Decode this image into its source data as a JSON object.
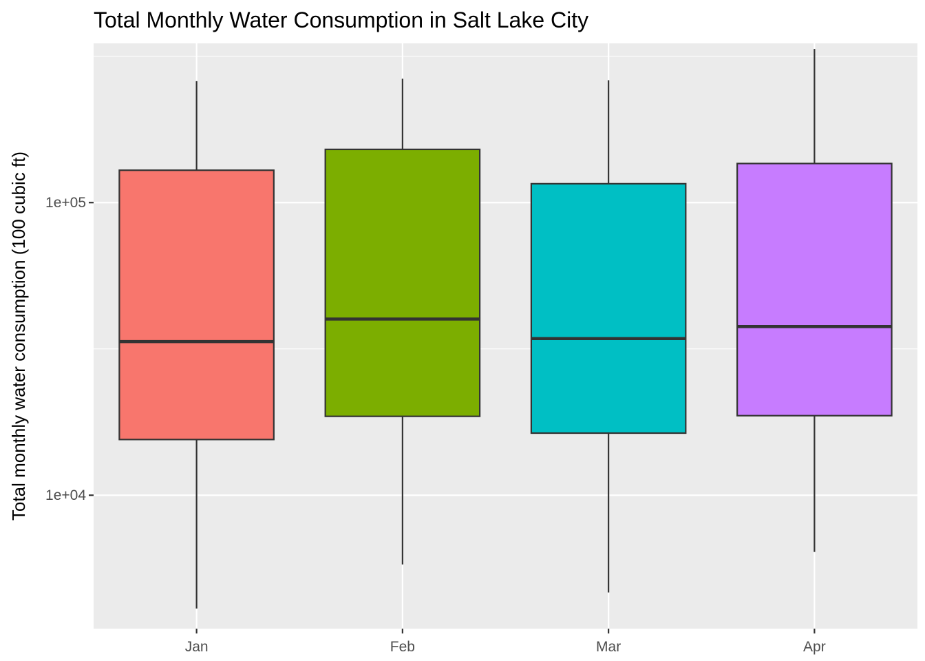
{
  "chart_data": {
    "type": "boxplot",
    "title": "Total Monthly Water Consumption in Salt Lake City",
    "xlabel": "",
    "ylabel": "Total monthly water consumption (100 cubic ft)",
    "y_scale": "log10",
    "ylim": [
      3500,
      350000
    ],
    "y_ticks": [
      10000,
      100000
    ],
    "y_tick_labels": [
      "1e+04",
      "1e+05"
    ],
    "categories": [
      "Jan",
      "Feb",
      "Mar",
      "Apr"
    ],
    "boxes": [
      {
        "category": "Jan",
        "min": 4100,
        "q1": 15500,
        "median": 33500,
        "q3": 129000,
        "max": 260000
      },
      {
        "category": "Feb",
        "min": 5800,
        "q1": 18600,
        "median": 40000,
        "q3": 152000,
        "max": 265000
      },
      {
        "category": "Mar",
        "min": 4650,
        "q1": 16300,
        "median": 34300,
        "q3": 116000,
        "max": 262000
      },
      {
        "category": "Apr",
        "min": 6400,
        "q1": 18700,
        "median": 37700,
        "q3": 136000,
        "max": 335000
      }
    ],
    "colors": [
      "#F8766D",
      "#7CAE00",
      "#00BFC4",
      "#C77CFF"
    ],
    "grid": true,
    "legend": "none",
    "panel_background": "#EBEBEB",
    "grid_color": "#FFFFFF"
  }
}
